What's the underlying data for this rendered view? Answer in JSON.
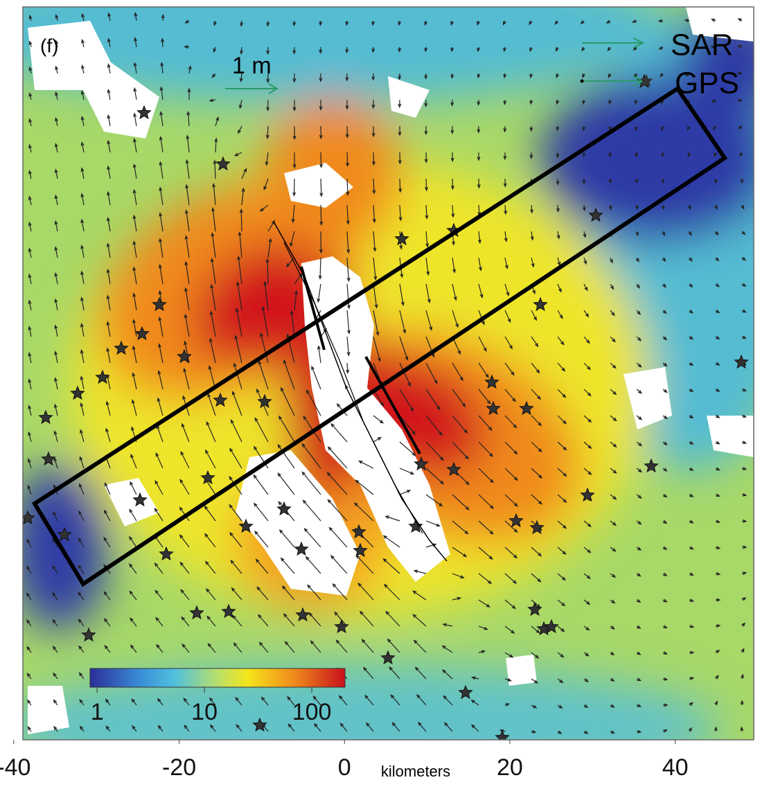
{
  "panel_label": "(f)",
  "scale_arrow_label": "1 m",
  "legend": {
    "items": [
      {
        "label": "SAR",
        "color": "#2a9a6a"
      },
      {
        "label": "GPS",
        "color": "#2a9a6a"
      }
    ]
  },
  "colorbar": {
    "scale": "log",
    "lim": [
      0.86,
      204
    ],
    "ticks": [
      1,
      10,
      100
    ]
  },
  "x_axis": {
    "label": "kilometers",
    "lim": [
      -38.9,
      49.5
    ],
    "ticks": [
      -40,
      -20,
      0,
      20,
      40
    ]
  }
}
